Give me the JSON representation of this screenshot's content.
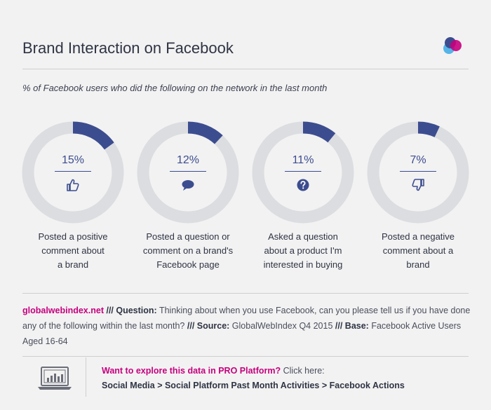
{
  "header": {
    "title": "Brand Interaction on Facebook",
    "subtitle": "% of Facebook users who did the following on the network in the last month"
  },
  "colors": {
    "accent": "#3c4d8f",
    "track": "#dcdde1",
    "brand_pink": "#c6007e",
    "brand_blue": "#4a90d9"
  },
  "chart_data": {
    "type": "pie",
    "subtitle": "% of Facebook users who did the following on the network in the last month",
    "series": [
      {
        "value": 15,
        "label_text": "15%",
        "icon": "thumbs-up-icon",
        "category": "Posted a positive comment about a brand",
        "lines": [
          "Posted a positive",
          "comment about",
          "a brand"
        ]
      },
      {
        "value": 12,
        "label_text": "12%",
        "icon": "speech-bubble-icon",
        "category": "Posted a question or comment on a brand's Facebook page",
        "lines": [
          "Posted a question or",
          "comment on a brand's",
          "Facebook page"
        ]
      },
      {
        "value": 11,
        "label_text": "11%",
        "icon": "question-mark-icon",
        "category": "Asked a question about a product I'm interested in buying",
        "lines": [
          "Asked a question",
          "about a product I'm",
          "interested in buying"
        ]
      },
      {
        "value": 7,
        "label_text": "7%",
        "icon": "thumbs-down-icon",
        "category": "Posted a negative comment about a brand",
        "lines": [
          "Posted a negative",
          "comment about a",
          "brand"
        ]
      }
    ]
  },
  "footnote": {
    "site": "globalwebindex.net",
    "q_label": "/// Question:",
    "q_text": "Thinking about when you use Facebook, can you please tell us if you have done any of the following within the last month?",
    "s_label": "/// Source:",
    "s_text": "GlobalWebIndex Q4 2015",
    "b_label": "/// Base:",
    "b_text": "Facebook Active Users Aged 16-64"
  },
  "pro": {
    "prompt": "Want to explore this data in PRO Platform?",
    "click": "Click here:",
    "path": "Social Media > Social Platform Past Month Activities > Facebook Actions"
  }
}
